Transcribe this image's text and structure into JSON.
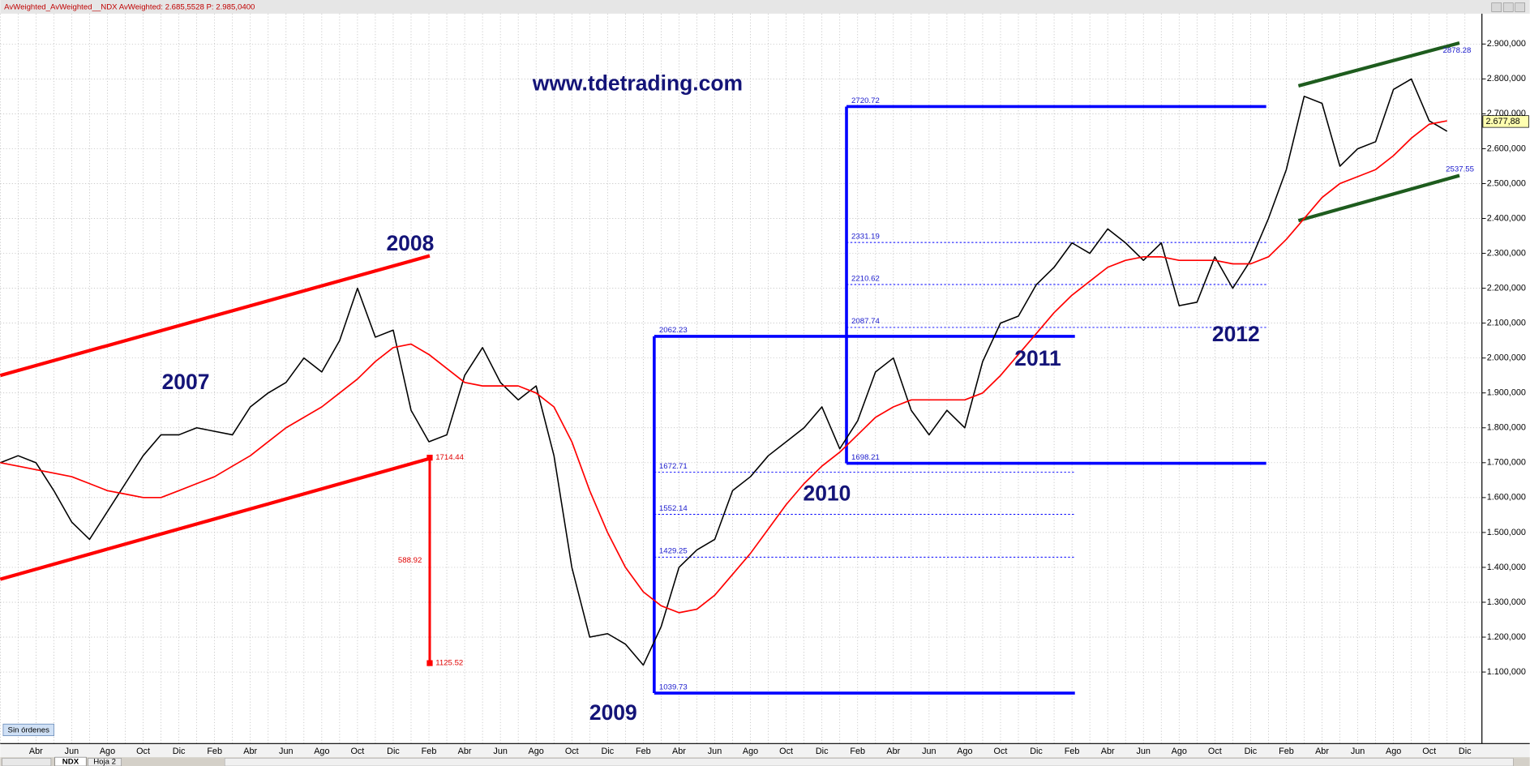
{
  "window": {
    "header": "AvWeighted_AvWeighted__NDX  AvWeighted: 2.685,5528  P: 2.985,0400",
    "status": "Sin órdenes",
    "tabs": [
      "NDX",
      "Hoja 2"
    ]
  },
  "chart_data": {
    "type": "line",
    "watermark": "www.tdetrading.com",
    "year_labels": [
      "2007",
      "2008",
      "2009",
      "2010",
      "2011",
      "2012"
    ],
    "categories": [
      null,
      null,
      "Abr",
      null,
      "Jun",
      null,
      "Ago",
      null,
      "Oct",
      null,
      "Dic",
      null,
      "Feb",
      null,
      "Abr",
      null,
      "Jun",
      null,
      "Ago",
      null,
      "Oct",
      null,
      "Dic",
      null,
      "Feb",
      null,
      "Abr",
      null,
      "Jun",
      null,
      "Ago",
      null,
      "Oct",
      null,
      "Dic",
      null,
      "Feb",
      null,
      "Abr",
      null,
      "Jun",
      null,
      "Ago",
      null,
      "Oct",
      null,
      "Dic",
      null,
      "Feb",
      null,
      "Abr",
      null,
      "Jun",
      null,
      "Ago",
      null,
      "Oct",
      null,
      "Dic",
      null,
      "Feb",
      null,
      "Abr",
      null,
      "Jun",
      null,
      "Ago",
      null,
      "Oct",
      null,
      "Dic",
      null,
      "Feb",
      null,
      "Abr",
      null,
      "Jun",
      null,
      "Ago",
      null,
      "Oct",
      null,
      "Dic"
    ],
    "series": [
      {
        "color": "#000000",
        "values": [
          1700,
          1720,
          1700,
          1620,
          1530,
          1480,
          1560,
          1640,
          1720,
          1780,
          1780,
          1800,
          1790,
          1780,
          1860,
          1900,
          1930,
          2000,
          1960,
          2050,
          2200,
          2060,
          2080,
          1850,
          1760,
          1780,
          1950,
          2030,
          1930,
          1880,
          1920,
          1720,
          1400,
          1200,
          1210,
          1180,
          1120,
          1230,
          1400,
          1450,
          1480,
          1620,
          1660,
          1720,
          1760,
          1800,
          1860,
          1740,
          1820,
          1960,
          2000,
          1850,
          1780,
          1850,
          1800,
          1990,
          2100,
          2120,
          2210,
          2260,
          2330,
          2300,
          2370,
          2330,
          2280,
          2330,
          2150,
          2160,
          2290,
          2200,
          2280,
          2400,
          2540,
          2750,
          2730,
          2550,
          2600,
          2620,
          2770,
          2800,
          2680,
          2650,
          null
        ]
      },
      {
        "color": "#ff0000",
        "values": [
          1700,
          1690,
          1680,
          1670,
          1660,
          1640,
          1620,
          1610,
          1600,
          1600,
          1620,
          1640,
          1660,
          1690,
          1720,
          1760,
          1800,
          1830,
          1860,
          1900,
          1940,
          1990,
          2030,
          2040,
          2010,
          1970,
          1930,
          1920,
          1920,
          1920,
          1900,
          1860,
          1760,
          1620,
          1500,
          1400,
          1330,
          1290,
          1270,
          1280,
          1320,
          1380,
          1440,
          1510,
          1580,
          1640,
          1690,
          1730,
          1780,
          1830,
          1860,
          1880,
          1880,
          1880,
          1880,
          1900,
          1950,
          2010,
          2070,
          2130,
          2180,
          2220,
          2260,
          2280,
          2290,
          2290,
          2280,
          2280,
          2280,
          2270,
          2270,
          2290,
          2340,
          2400,
          2460,
          2500,
          2520,
          2540,
          2580,
          2630,
          2670,
          2680,
          null
        ]
      }
    ],
    "fib_retracements": [
      {
        "high": 2062.23,
        "low": 1039.73,
        "levels": [
          1672.71,
          1552.14,
          1429.25
        ],
        "color": "#0000ff"
      },
      {
        "high": 2720.72,
        "low": 1698.21,
        "levels": [
          2331.19,
          2210.62,
          2087.74
        ],
        "color": "#0000ff"
      }
    ],
    "measure": {
      "from": 1714.44,
      "to": 1125.52,
      "distance": 588.92,
      "color": "#ff0000"
    },
    "channels": [
      {
        "color": "#ff0000",
        "upper": [
          1950,
          2293
        ],
        "lower": [
          1366,
          1712
        ]
      },
      {
        "color": "#1e5c1e",
        "upper": [
          2780,
          2903
        ],
        "lower": [
          2394,
          2523
        ]
      }
    ],
    "price_labels": [
      2878.28,
      2537.55
    ],
    "last_price": {
      "value": 2677.88,
      "label": "2.677,88"
    },
    "ylim": [
      895,
      2987
    ],
    "yticks": [
      {
        "value": 1100,
        "label": "1.100,000"
      },
      {
        "value": 1200,
        "label": "1.200,000"
      },
      {
        "value": 1300,
        "label": "1.300,000"
      },
      {
        "value": 1400,
        "label": "1.400,000"
      },
      {
        "value": 1500,
        "label": "1.500,000"
      },
      {
        "value": 1600,
        "label": "1.600,000"
      },
      {
        "value": 1700,
        "label": "1.700,000"
      },
      {
        "value": 1800,
        "label": "1.800,000"
      },
      {
        "value": 1900,
        "label": "1.900,000"
      },
      {
        "value": 2000,
        "label": "2.000,000"
      },
      {
        "value": 2100,
        "label": "2.100,000"
      },
      {
        "value": 2200,
        "label": "2.200,000"
      },
      {
        "value": 2300,
        "label": "2.300,000"
      },
      {
        "value": 2400,
        "label": "2.400,000"
      },
      {
        "value": 2500,
        "label": "2.500,000"
      },
      {
        "value": 2600,
        "label": "2.600,000"
      },
      {
        "value": 2700,
        "label": "2.700,000"
      },
      {
        "value": 2800,
        "label": "2.800,000"
      },
      {
        "value": 2900,
        "label": "2.900,000"
      }
    ],
    "grid": true
  }
}
